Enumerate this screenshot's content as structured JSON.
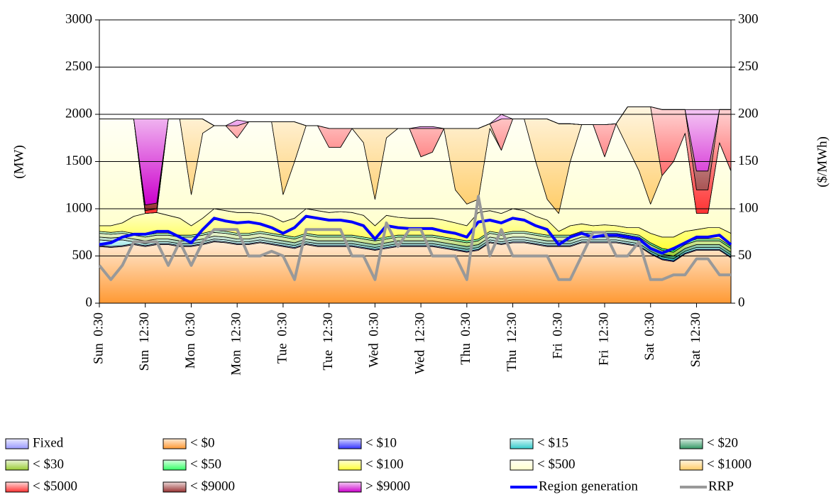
{
  "chart_data": {
    "type": "area",
    "y_label": "(MW)",
    "y2_label": "($/MWh)",
    "categories": [
      "Sun  0:30",
      null,
      null,
      null,
      "Sun  12:30",
      null,
      null,
      null,
      "Mon  0:30",
      null,
      null,
      null,
      "Mon  12:30",
      null,
      null,
      null,
      "Tue  0:30",
      null,
      null,
      null,
      "Tue  12:30",
      null,
      null,
      null,
      "Wed  0:30",
      null,
      null,
      null,
      "Wed  12:30",
      null,
      null,
      null,
      "Thu  0:30",
      null,
      null,
      null,
      "Thu  12:30",
      null,
      null,
      null,
      "Fri  0:30",
      null,
      null,
      null,
      "Fri  12:30",
      null,
      null,
      null,
      "Sat  0:30",
      null,
      null,
      null,
      "Sat  12:30",
      null,
      null,
      null
    ],
    "ylim": [
      0,
      3000
    ],
    "yticks": [
      0,
      500,
      1000,
      1500,
      2000,
      2500,
      3000
    ],
    "y2lim": [
      0,
      300
    ],
    "y2ticks": [
      0,
      50,
      100,
      150,
      200,
      250,
      300
    ],
    "grid": true,
    "series": [
      {
        "name": "Fixed",
        "color": "#9999ff",
        "values": [
          0,
          0,
          0,
          0,
          0,
          0,
          0,
          0,
          0,
          0,
          0,
          0,
          0,
          0,
          0,
          0,
          0,
          0,
          0,
          0,
          0,
          0,
          0,
          0,
          0,
          0,
          0,
          0,
          0,
          0,
          0,
          0,
          0,
          0,
          0,
          0,
          0,
          0,
          0,
          0,
          0,
          0,
          0,
          0,
          0,
          0,
          0,
          0,
          0,
          0,
          0,
          0,
          0,
          0,
          0,
          0
        ]
      },
      {
        "name": "< $0",
        "color": "#ff9933",
        "values": [
          600,
          590,
          600,
          620,
          600,
          620,
          620,
          600,
          600,
          620,
          650,
          640,
          620,
          620,
          640,
          620,
          600,
          580,
          620,
          600,
          600,
          600,
          600,
          580,
          560,
          580,
          600,
          600,
          600,
          600,
          580,
          560,
          540,
          560,
          640,
          620,
          640,
          640,
          620,
          600,
          600,
          600,
          640,
          640,
          640,
          640,
          620,
          600,
          520,
          460,
          440,
          520,
          560,
          560,
          560,
          480
        ]
      },
      {
        "name": "< $10",
        "color": "#3333ff",
        "values": [
          10,
          10,
          10,
          10,
          10,
          10,
          10,
          10,
          10,
          10,
          10,
          10,
          10,
          10,
          10,
          10,
          10,
          10,
          10,
          10,
          10,
          10,
          10,
          10,
          10,
          10,
          10,
          10,
          10,
          10,
          10,
          10,
          10,
          10,
          10,
          10,
          10,
          10,
          10,
          10,
          10,
          10,
          10,
          10,
          10,
          10,
          10,
          10,
          10,
          10,
          10,
          10,
          10,
          10,
          10,
          10
        ]
      },
      {
        "name": "< $15",
        "color": "#33cccc",
        "values": [
          60,
          60,
          60,
          20,
          20,
          20,
          20,
          20,
          20,
          20,
          20,
          20,
          20,
          20,
          20,
          20,
          20,
          20,
          20,
          20,
          20,
          20,
          20,
          20,
          20,
          20,
          20,
          20,
          20,
          20,
          20,
          20,
          20,
          20,
          20,
          20,
          20,
          20,
          20,
          20,
          20,
          20,
          20,
          20,
          20,
          20,
          20,
          20,
          20,
          20,
          20,
          20,
          20,
          20,
          20,
          20
        ]
      },
      {
        "name": "< $20",
        "color": "#339966",
        "values": [
          30,
          30,
          30,
          30,
          30,
          30,
          30,
          30,
          30,
          30,
          30,
          30,
          30,
          30,
          30,
          30,
          30,
          30,
          30,
          30,
          30,
          30,
          30,
          30,
          30,
          30,
          30,
          30,
          30,
          30,
          30,
          30,
          30,
          30,
          30,
          30,
          30,
          30,
          30,
          30,
          30,
          30,
          30,
          30,
          30,
          30,
          30,
          30,
          30,
          30,
          30,
          30,
          30,
          30,
          30,
          30
        ]
      },
      {
        "name": "< $30",
        "color": "#99cc33",
        "values": [
          40,
          40,
          40,
          40,
          40,
          40,
          40,
          40,
          40,
          40,
          40,
          40,
          40,
          40,
          40,
          40,
          40,
          40,
          40,
          40,
          40,
          40,
          40,
          40,
          40,
          40,
          40,
          40,
          40,
          40,
          40,
          40,
          40,
          40,
          40,
          40,
          40,
          40,
          40,
          40,
          40,
          40,
          40,
          40,
          40,
          40,
          40,
          40,
          40,
          40,
          40,
          40,
          40,
          40,
          40,
          40
        ]
      },
      {
        "name": "< $50",
        "color": "#33ff66",
        "values": [
          20,
          20,
          20,
          20,
          20,
          20,
          20,
          20,
          20,
          20,
          20,
          20,
          20,
          20,
          20,
          20,
          20,
          20,
          20,
          20,
          20,
          20,
          20,
          20,
          20,
          20,
          20,
          20,
          20,
          20,
          20,
          20,
          20,
          20,
          20,
          20,
          20,
          20,
          20,
          20,
          20,
          20,
          20,
          20,
          20,
          20,
          20,
          20,
          20,
          20,
          20,
          20,
          20,
          20,
          20,
          20
        ]
      },
      {
        "name": "< $100",
        "color": "#ffff33",
        "values": [
          60,
          70,
          90,
          180,
          230,
          220,
          190,
          180,
          100,
          160,
          230,
          220,
          220,
          220,
          190,
          180,
          140,
          200,
          260,
          260,
          240,
          250,
          240,
          230,
          140,
          230,
          190,
          180,
          180,
          180,
          180,
          170,
          160,
          280,
          220,
          210,
          240,
          220,
          180,
          160,
          40,
          100,
          80,
          60,
          70,
          60,
          60,
          80,
          100,
          120,
          140,
          120,
          100,
          120,
          120,
          140
        ]
      },
      {
        "name": "< $500",
        "color": "#ffffcc",
        "values": [
          1130,
          1130,
          1100,
          1030,
          0,
          0,
          1020,
          1050,
          330,
          900,
          880,
          900,
          790,
          960,
          970,
          1000,
          290,
          600,
          880,
          900,
          690,
          680,
          890,
          770,
          280,
          820,
          940,
          950,
          650,
          700,
          970,
          350,
          230,
          140,
          870,
          670,
          950,
          970,
          580,
          220,
          190,
          680,
          1050,
          1070,
          720,
          1080,
          850,
          600,
          310,
          650,
          800,
          1040,
          170,
          150,
          900,
          660
        ]
      },
      {
        "name": "< $1000",
        "color": "#ffcc66",
        "values": [
          0,
          0,
          0,
          0,
          0,
          0,
          0,
          0,
          800,
          150,
          0,
          0,
          0,
          0,
          0,
          0,
          770,
          420,
          0,
          0,
          0,
          0,
          0,
          150,
          750,
          100,
          0,
          0,
          0,
          0,
          0,
          650,
          800,
          750,
          50,
          0,
          0,
          0,
          450,
          850,
          950,
          400,
          0,
          0,
          0,
          0,
          430,
          680,
          1030,
          0,
          0,
          0,
          0,
          0,
          0,
          0
        ]
      },
      {
        "name": "< $5000",
        "color": "#ff3333",
        "values": [
          0,
          0,
          0,
          0,
          30,
          40,
          0,
          0,
          0,
          0,
          0,
          0,
          130,
          0,
          0,
          0,
          0,
          0,
          0,
          0,
          200,
          200,
          0,
          0,
          0,
          0,
          0,
          0,
          300,
          250,
          0,
          0,
          0,
          0,
          0,
          330,
          0,
          0,
          0,
          0,
          0,
          0,
          0,
          0,
          340,
          0,
          0,
          0,
          0,
          700,
          550,
          250,
          250,
          250,
          350,
          650
        ]
      },
      {
        "name": "< $9000",
        "color": "#993333",
        "values": [
          0,
          0,
          0,
          0,
          60,
          60,
          0,
          0,
          0,
          0,
          0,
          0,
          0,
          0,
          0,
          0,
          0,
          0,
          0,
          0,
          0,
          0,
          0,
          0,
          0,
          0,
          0,
          0,
          0,
          0,
          0,
          0,
          0,
          0,
          0,
          0,
          0,
          0,
          0,
          0,
          0,
          0,
          0,
          0,
          0,
          0,
          0,
          0,
          0,
          0,
          0,
          0,
          200,
          200,
          0,
          0
        ]
      },
      {
        "name": "> $9000",
        "color": "#cc00cc",
        "values": [
          0,
          0,
          0,
          0,
          910,
          890,
          0,
          0,
          0,
          0,
          0,
          0,
          60,
          0,
          0,
          0,
          0,
          0,
          0,
          0,
          0,
          0,
          0,
          0,
          0,
          0,
          0,
          0,
          20,
          20,
          0,
          0,
          0,
          0,
          0,
          50,
          0,
          0,
          0,
          0,
          0,
          0,
          0,
          0,
          0,
          0,
          0,
          0,
          0,
          0,
          0,
          0,
          650,
          650,
          0,
          0
        ]
      },
      {
        "name": "Region generation",
        "type": "line",
        "color": "#0000ff",
        "values": [
          620,
          640,
          700,
          730,
          730,
          760,
          760,
          700,
          640,
          780,
          900,
          870,
          850,
          860,
          840,
          800,
          740,
          800,
          920,
          900,
          880,
          880,
          860,
          820,
          680,
          820,
          800,
          790,
          790,
          790,
          760,
          740,
          700,
          860,
          880,
          850,
          900,
          880,
          820,
          780,
          620,
          700,
          740,
          700,
          720,
          720,
          700,
          680,
          580,
          530,
          580,
          640,
          700,
          700,
          720,
          620
        ]
      },
      {
        "name": "RRP",
        "type": "line",
        "axis": "y2",
        "color": "#999999",
        "values": [
          40,
          25,
          40,
          65,
          65,
          65,
          40,
          65,
          40,
          65,
          78,
          78,
          78,
          50,
          50,
          55,
          50,
          25,
          78,
          78,
          78,
          78,
          50,
          50,
          25,
          85,
          60,
          78,
          78,
          50,
          50,
          50,
          25,
          113,
          50,
          78,
          50,
          50,
          50,
          50,
          25,
          25,
          50,
          75,
          75,
          50,
          50,
          65,
          25,
          25,
          30,
          30,
          47,
          47,
          30,
          30
        ]
      }
    ]
  }
}
